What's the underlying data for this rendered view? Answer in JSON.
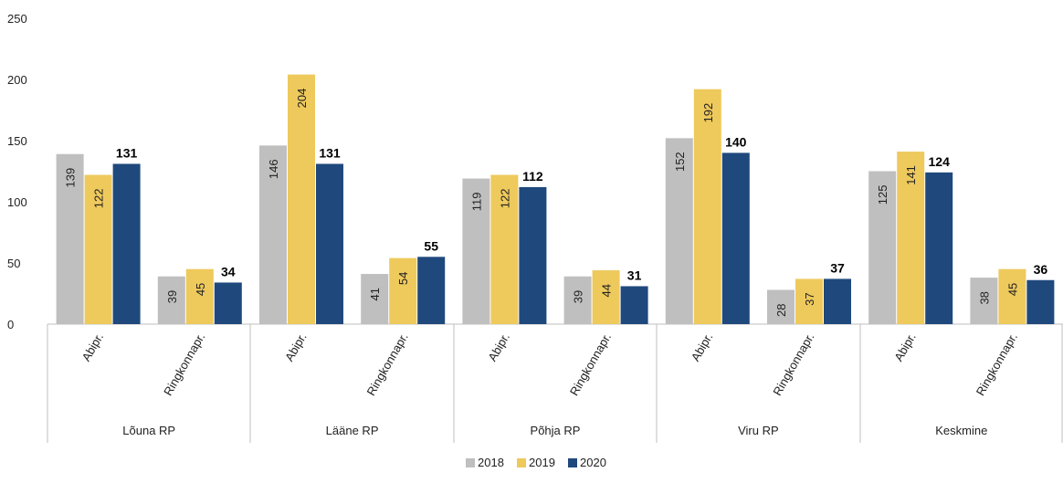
{
  "chart_data": {
    "type": "bar",
    "title": "",
    "xlabel": "",
    "ylabel": "",
    "ylim": [
      0,
      250
    ],
    "yticks": [
      0,
      50,
      100,
      150,
      200,
      250
    ],
    "grid": false,
    "legend_position": "bottom",
    "groups": [
      {
        "label": "Lõuna RP",
        "categories": [
          "Abipr.",
          "Ringkonnapr."
        ]
      },
      {
        "label": "Lääne RP",
        "categories": [
          "Abipr.",
          "Ringkonnapr."
        ]
      },
      {
        "label": "Põhja RP",
        "categories": [
          "Abipr.",
          "Ringkonnapr."
        ]
      },
      {
        "label": "Viru RP",
        "categories": [
          "Abipr.",
          "Ringkonnapr."
        ]
      },
      {
        "label": "Keskmine",
        "categories": [
          "Abipr.",
          "Ringkonnapr."
        ]
      }
    ],
    "series": [
      {
        "name": "2018",
        "color": "#bfbfbf",
        "label_style": "inside-rotated",
        "values": [
          139,
          39,
          146,
          41,
          119,
          39,
          152,
          28,
          125,
          38
        ]
      },
      {
        "name": "2019",
        "color": "#eec95c",
        "label_style": "inside-rotated",
        "values": [
          122,
          45,
          204,
          54,
          122,
          44,
          192,
          37,
          141,
          45
        ]
      },
      {
        "name": "2020",
        "color": "#1f497d",
        "label_style": "above-bold",
        "values": [
          131,
          34,
          131,
          55,
          112,
          31,
          140,
          37,
          124,
          36
        ]
      }
    ]
  }
}
